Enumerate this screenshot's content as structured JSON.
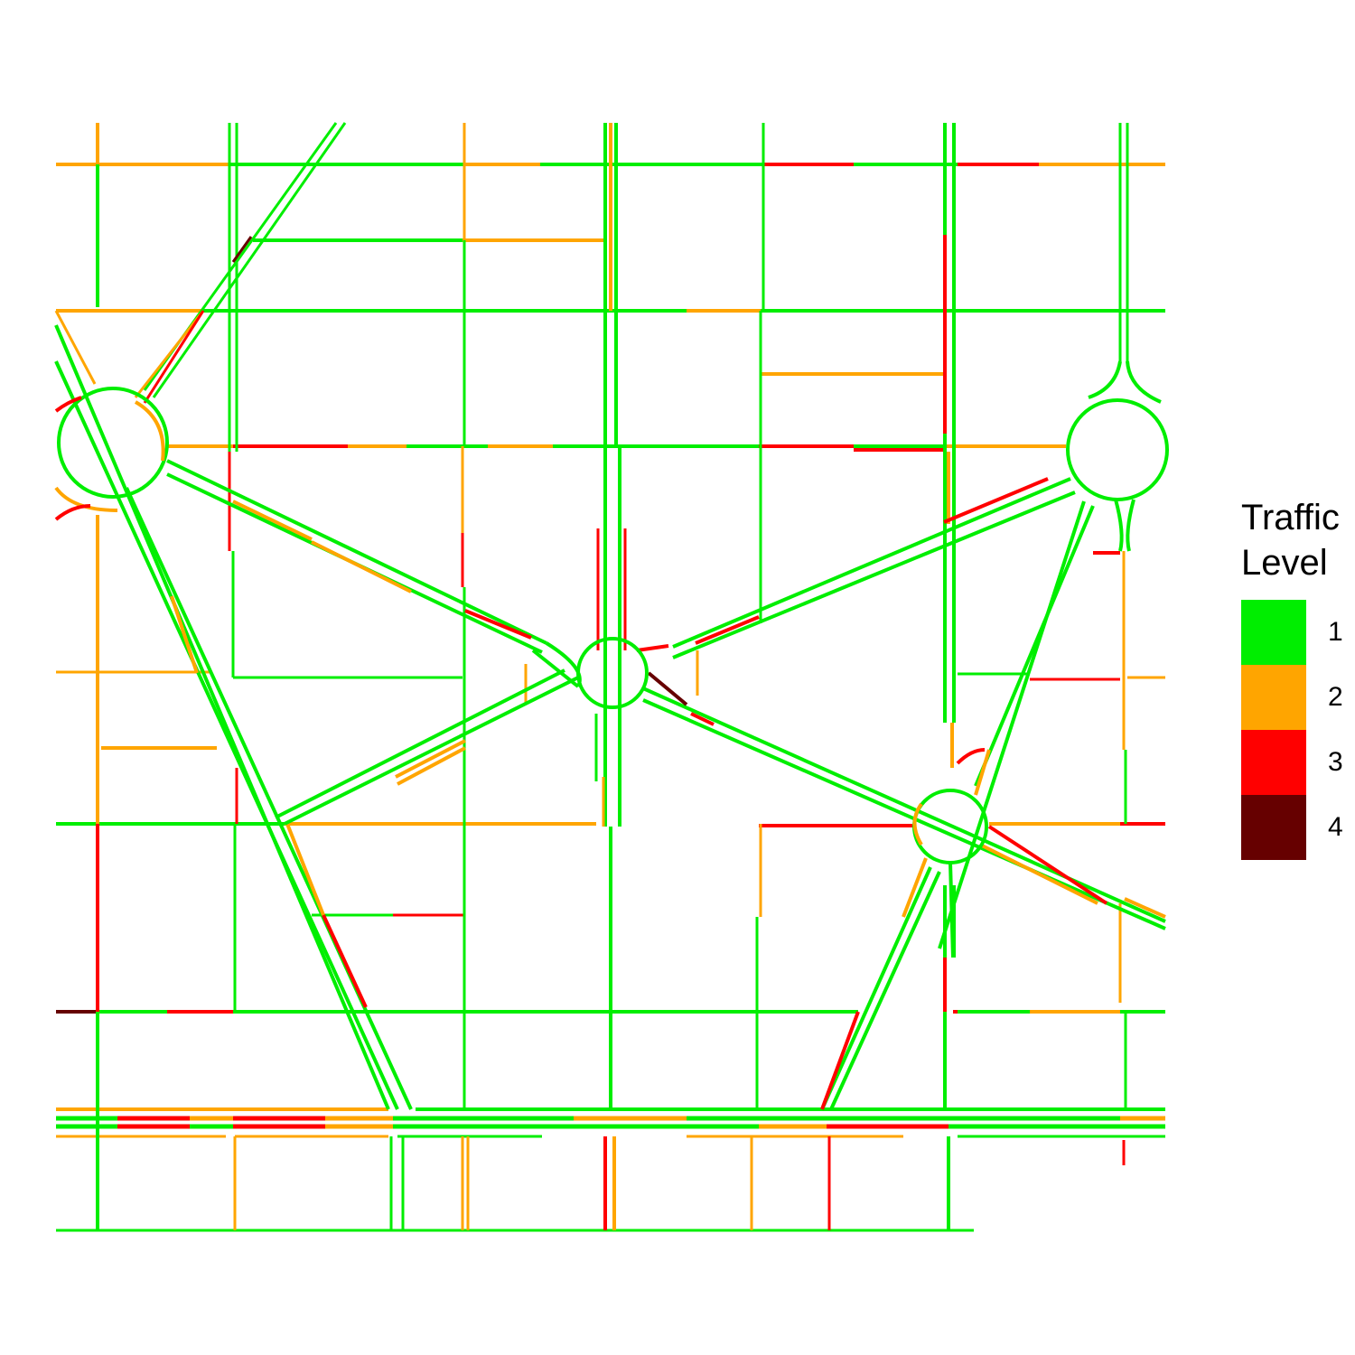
{
  "legend": {
    "title_line1": "Traffic",
    "title_line2": "Level",
    "items": [
      {
        "label": "1",
        "color": "#00ee00"
      },
      {
        "label": "2",
        "color": "#ffa500"
      },
      {
        "label": "3",
        "color": "#ff0000"
      },
      {
        "label": "4",
        "color": "#660000"
      }
    ]
  }
}
